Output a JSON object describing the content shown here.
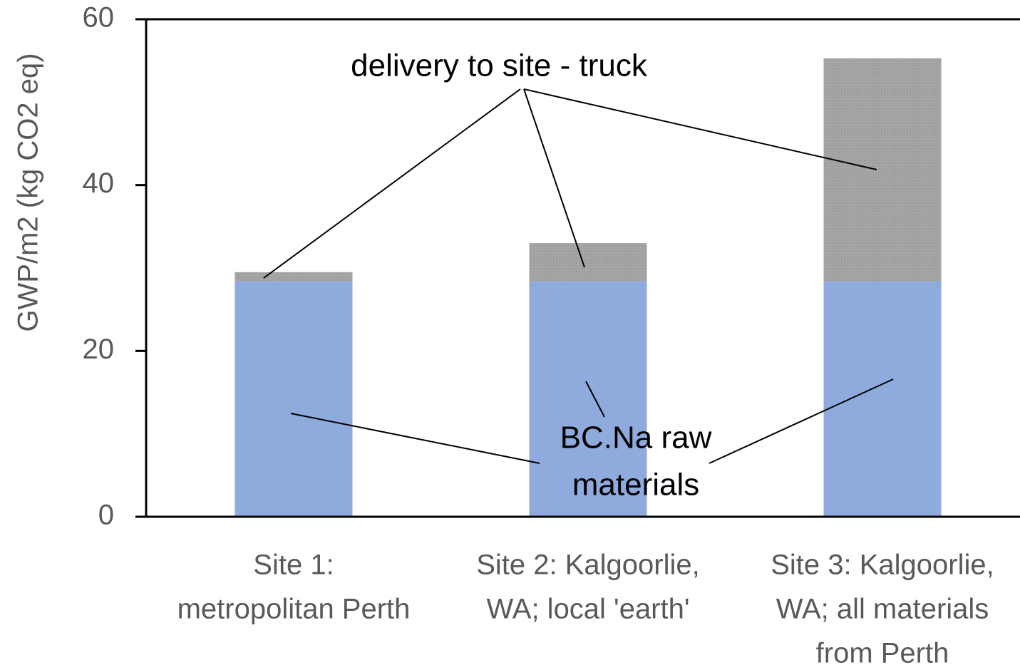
{
  "chart_data": {
    "type": "stacked_bar",
    "y_label": "GWP/m2 (kg CO2 eq)",
    "categories": [
      [
        "Site 1:",
        "metropolitan Perth"
      ],
      [
        "Site 2: Kalgoorlie,",
        "WA; local 'earth'"
      ],
      [
        "Site 3: Kalgoorlie,",
        "WA; all materials",
        "from Perth"
      ]
    ],
    "series": [
      {
        "color": "#8faadc",
        "values": [
          28.4,
          28.4,
          28.4
        ]
      },
      {
        "color": "#a6a6a6",
        "values": [
          1.1,
          4.6,
          26.9
        ]
      }
    ],
    "annotations": [
      {
        "lines": [
          "delivery to site - truck"
        ]
      },
      {
        "lines": [
          "BC.Na raw",
          "materials"
        ]
      }
    ],
    "ylim": [
      0,
      60
    ],
    "yticks": [
      0,
      20,
      40,
      60
    ],
    "grid": false
  }
}
